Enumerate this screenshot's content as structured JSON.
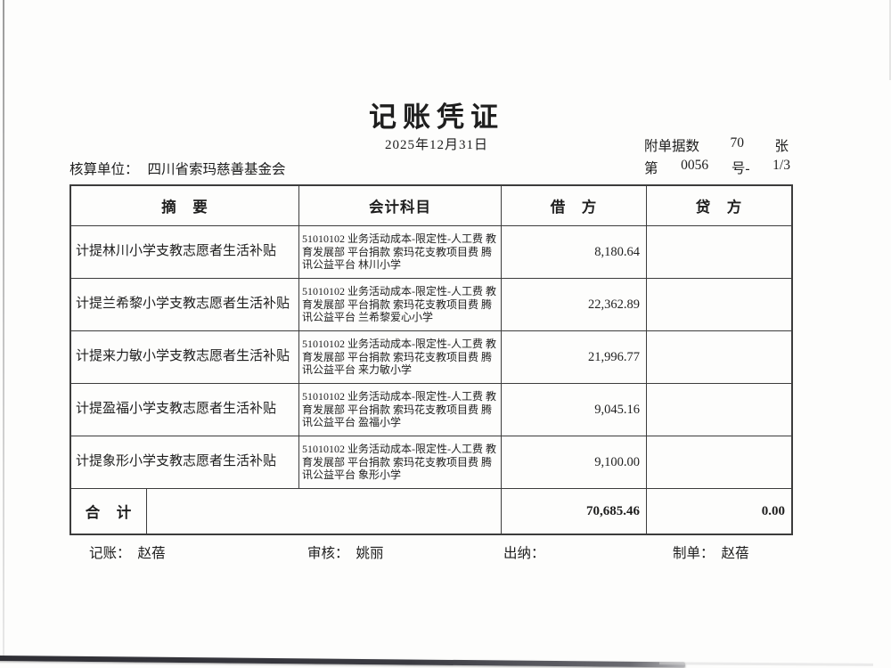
{
  "voucher": {
    "title": "记账凭证",
    "date": "2025年12月31日",
    "attachment": {
      "label": "附单据数",
      "count": "70",
      "unit": "张"
    },
    "number": {
      "prefix": "第",
      "value": "0056",
      "suffix": "号-",
      "page": "1/3"
    },
    "unit": {
      "label": "核算单位：",
      "name": "四川省索玛慈善基金会"
    }
  },
  "table": {
    "headers": {
      "summary": "摘　要",
      "account": "会计科目",
      "debit": "借　方",
      "credit": "贷　方"
    },
    "rows": [
      {
        "summary": "计提林川小学支教志愿者生活补贴",
        "account": "51010102 业务活动成本-限定性-人工费 教育发展部 平台捐款 索玛花支教项目费 腾讯公益平台 林川小学",
        "debit": "8,180.64",
        "credit": ""
      },
      {
        "summary": "计提兰希黎小学支教志愿者生活补贴",
        "account": "51010102 业务活动成本-限定性-人工费 教育发展部 平台捐款 索玛花支教项目费 腾讯公益平台 兰希黎爱心小学",
        "debit": "22,362.89",
        "credit": ""
      },
      {
        "summary": "计提来力敏小学支教志愿者生活补贴",
        "account": "51010102 业务活动成本-限定性-人工费 教育发展部 平台捐款 索玛花支教项目费 腾讯公益平台 来力敏小学",
        "debit": "21,996.77",
        "credit": ""
      },
      {
        "summary": "计提盈福小学支教志愿者生活补贴",
        "account": "51010102 业务活动成本-限定性-人工费 教育发展部 平台捐款 索玛花支教项目费 腾讯公益平台 盈福小学",
        "debit": "9,045.16",
        "credit": ""
      },
      {
        "summary": "计提象形小学支教志愿者生活补贴",
        "account": "51010102 业务活动成本-限定性-人工费 教育发展部 平台捐款 索玛花支教项目费 腾讯公益平台 象形小学",
        "debit": "9,100.00",
        "credit": ""
      }
    ],
    "total": {
      "label": "合　计",
      "debit": "70,685.46",
      "credit": "0.00"
    }
  },
  "signatures": {
    "bookkeeper_label": "记账：",
    "bookkeeper": "赵蓓",
    "reviewer_label": "审核：",
    "reviewer": "姚丽",
    "cashier_label": "出纳：",
    "cashier": "",
    "preparer_label": "制单：",
    "preparer": "赵蓓"
  },
  "colors": {
    "paper": "#fdfdfc",
    "text": "#1e1e1e",
    "table_border": "#3c3c3c",
    "scan_edge_dark": "#2f2f35"
  }
}
